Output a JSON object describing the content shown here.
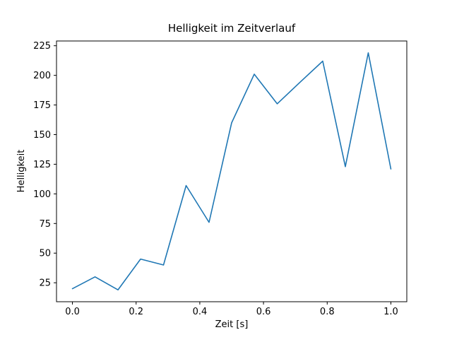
{
  "chart_data": {
    "type": "line",
    "title": "Helligkeit im Zeitverlauf",
    "xlabel": "Zeit [s]",
    "ylabel": "Helligkeit",
    "x": [
      0.0,
      0.071,
      0.143,
      0.214,
      0.286,
      0.357,
      0.429,
      0.5,
      0.571,
      0.643,
      0.714,
      0.786,
      0.857,
      0.929,
      1.0
    ],
    "y": [
      20,
      30,
      19,
      45,
      40,
      107,
      76,
      160,
      201,
      176,
      194,
      212,
      123,
      219,
      121
    ],
    "xticks": {
      "values": [
        0.0,
        0.2,
        0.4,
        0.6,
        0.8,
        1.0
      ],
      "labels": [
        "0.0",
        "0.2",
        "0.4",
        "0.6",
        "0.8",
        "1.0"
      ]
    },
    "yticks": {
      "values": [
        25,
        50,
        75,
        100,
        125,
        150,
        175,
        200,
        225
      ],
      "labels": [
        "25",
        "50",
        "75",
        "100",
        "125",
        "150",
        "175",
        "200",
        "225"
      ]
    },
    "xlim": [
      -0.05,
      1.05
    ],
    "ylim": [
      9,
      229
    ],
    "grid": false,
    "legend_position": "none",
    "line_color": "#1f77b4",
    "spine_color": "#000000",
    "background": "#ffffff"
  }
}
